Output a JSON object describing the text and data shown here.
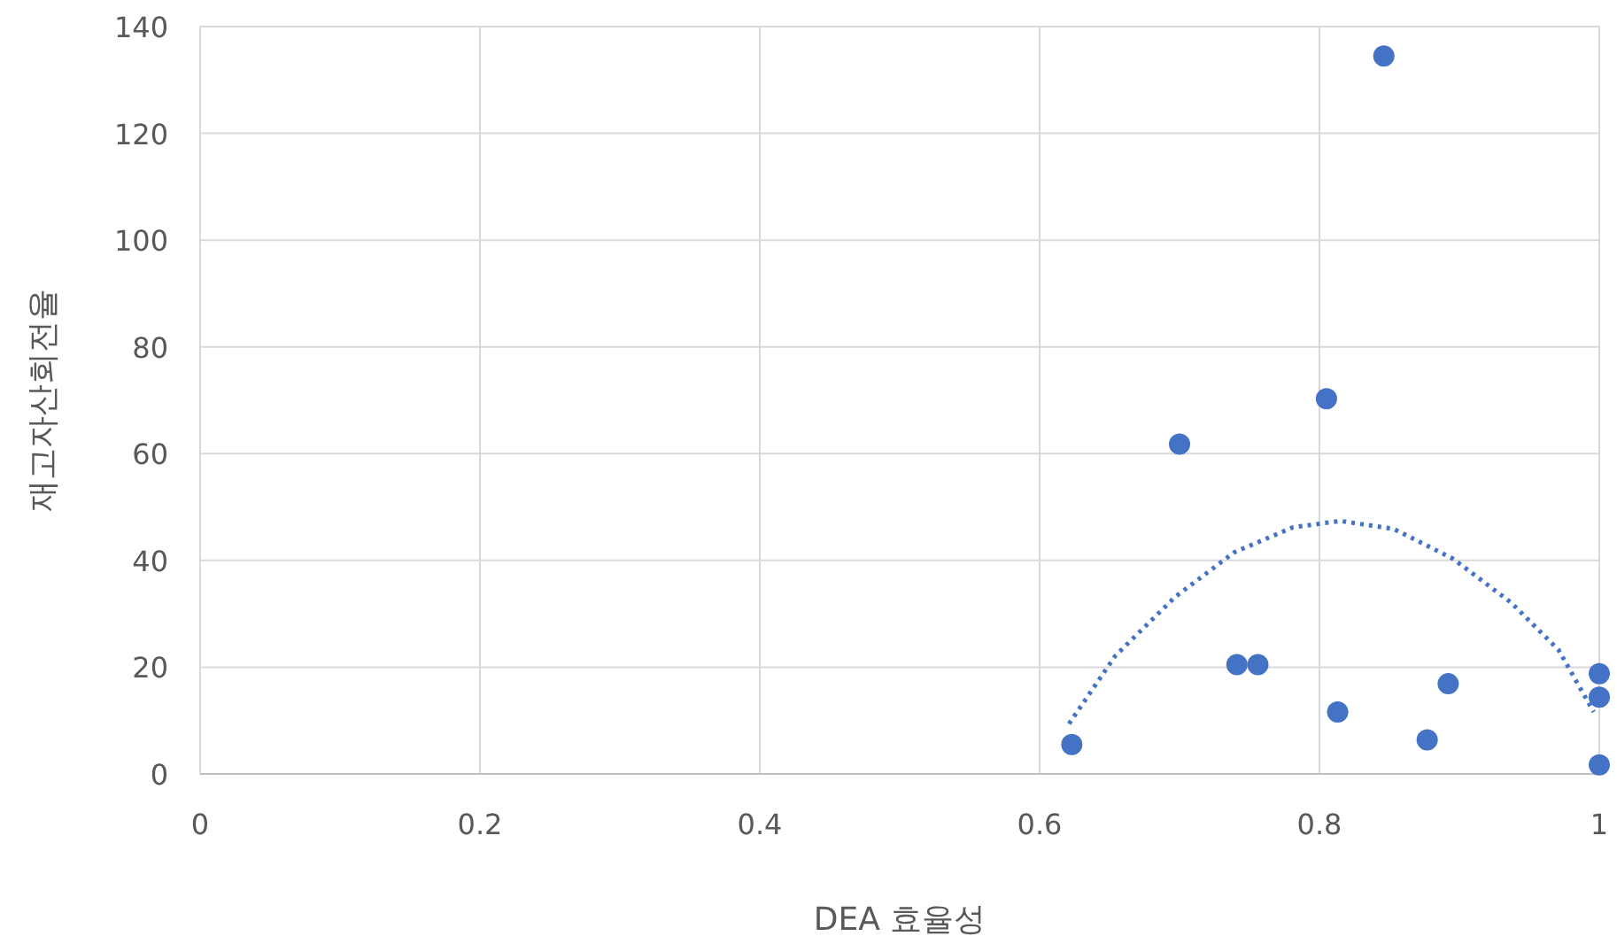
{
  "chart_data": {
    "type": "scatter",
    "xlabel": "DEA 효율성",
    "ylabel": "재고자산회전율",
    "xlim": [
      0,
      1
    ],
    "xticks": [
      0,
      0.2,
      0.4,
      0.6,
      0.8,
      1
    ],
    "ylim": [
      0,
      140
    ],
    "yticks": [
      0,
      20,
      40,
      60,
      80,
      100,
      120,
      140
    ],
    "grid": true,
    "marker": "circle",
    "series": [
      {
        "color": "#4472c4",
        "x": [
          0.623,
          0.7,
          0.741,
          0.756,
          0.805,
          0.846,
          0.813,
          0.877,
          0.892,
          1.0,
          1.0,
          1.0
        ],
        "values": [
          5.5,
          61.8,
          20.5,
          20.5,
          70.3,
          134.5,
          11.6,
          6.4,
          16.9,
          18.8,
          14.4,
          1.7
        ]
      },
      {
        "type": "line",
        "color": "#4472c4",
        "line_style": "dotted",
        "marker": "none",
        "x": [
          0.621,
          0.654,
          0.697,
          0.739,
          0.781,
          0.815,
          0.853,
          0.895,
          0.937,
          0.971,
          0.996
        ],
        "values": [
          9.4,
          22.1,
          33.2,
          41.5,
          46.2,
          47.4,
          45.9,
          40.4,
          32.1,
          23.2,
          11.6
        ]
      }
    ]
  }
}
